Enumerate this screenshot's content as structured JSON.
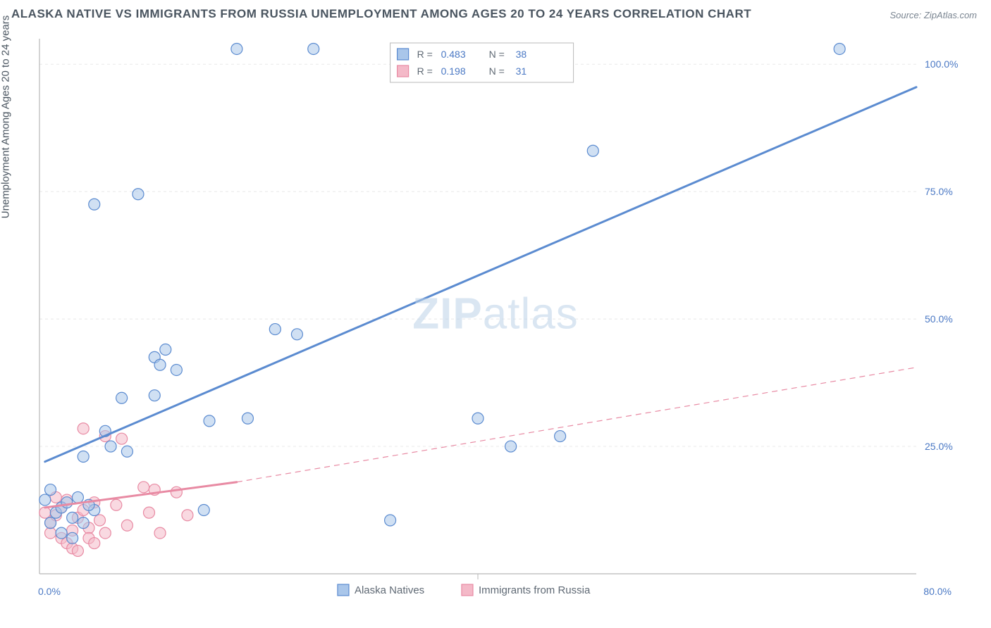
{
  "title": "ALASKA NATIVE VS IMMIGRANTS FROM RUSSIA UNEMPLOYMENT AMONG AGES 20 TO 24 YEARS CORRELATION CHART",
  "source_label": "Source: ZipAtlas.com",
  "ylabel": "Unemployment Among Ages 20 to 24 years",
  "watermark": {
    "bold_part": "ZIP",
    "rest_part": "atlas"
  },
  "chart": {
    "type": "scatter-with-regression",
    "background_color": "#ffffff",
    "xlim": [
      0,
      80
    ],
    "ylim": [
      0,
      105
    ],
    "x_ticks": [
      0,
      40,
      80
    ],
    "x_tick_labels": [
      "0.0%",
      "",
      "80.0%"
    ],
    "x_tick_color": "#4a78c4",
    "y_ticks": [
      25,
      50,
      75,
      100
    ],
    "y_tick_labels": [
      "25.0%",
      "50.0%",
      "75.0%",
      "100.0%"
    ],
    "y_tick_color": "#4a78c4",
    "grid_color": "#e8e8e8",
    "grid_dash": "4,4",
    "axis_color": "#b8b8b8",
    "tick_fontsize": 14,
    "label_fontsize": 15,
    "marker_radius": 8,
    "marker_stroke_width": 1.2,
    "line_width_solid": 3,
    "line_width_dashed": 1.2,
    "series": [
      {
        "name": "Alaska Natives",
        "color_fill": "#a9c6ea",
        "color_stroke": "#5b8bd0",
        "fill_opacity": 0.55,
        "points": [
          [
            1.0,
            16.5
          ],
          [
            1.5,
            12.0
          ],
          [
            2.0,
            13.0
          ],
          [
            2.5,
            14.0
          ],
          [
            3.0,
            11.0
          ],
          [
            3.5,
            15.0
          ],
          [
            4.0,
            10.0
          ],
          [
            4.0,
            23.0
          ],
          [
            5.0,
            72.5
          ],
          [
            6.0,
            28.0
          ],
          [
            5.0,
            12.5
          ],
          [
            6.5,
            25.0
          ],
          [
            7.5,
            34.5
          ],
          [
            8.0,
            24.0
          ],
          [
            9.0,
            74.5
          ],
          [
            10.5,
            42.5
          ],
          [
            10.5,
            35.0
          ],
          [
            11.0,
            41.0
          ],
          [
            11.5,
            44.0
          ],
          [
            12.5,
            40.0
          ],
          [
            15.0,
            12.5
          ],
          [
            15.5,
            30.0
          ],
          [
            18.0,
            103.0
          ],
          [
            19.0,
            30.5
          ],
          [
            21.5,
            48.0
          ],
          [
            23.5,
            47.0
          ],
          [
            25.0,
            103.0
          ],
          [
            32.0,
            10.5
          ],
          [
            40.0,
            30.5
          ],
          [
            43.0,
            25.0
          ],
          [
            47.5,
            27.0
          ],
          [
            50.5,
            83.0
          ],
          [
            73.0,
            103.0
          ],
          [
            2.0,
            8.0
          ],
          [
            3.0,
            7.0
          ],
          [
            4.5,
            13.5
          ],
          [
            1.0,
            10.0
          ],
          [
            0.5,
            14.5
          ]
        ],
        "trend": {
          "solid": {
            "x1": 0.5,
            "y1": 22.0,
            "x2": 80,
            "y2": 95.5
          }
        }
      },
      {
        "name": "Immigrants from Russia",
        "color_fill": "#f4b9c8",
        "color_stroke": "#e88aa3",
        "fill_opacity": 0.55,
        "points": [
          [
            0.5,
            12.0
          ],
          [
            1.0,
            10.0
          ],
          [
            1.0,
            8.0
          ],
          [
            1.5,
            15.0
          ],
          [
            1.5,
            11.5
          ],
          [
            2.0,
            7.0
          ],
          [
            2.0,
            13.0
          ],
          [
            2.5,
            6.0
          ],
          [
            2.5,
            14.5
          ],
          [
            3.0,
            8.5
          ],
          [
            3.0,
            5.0
          ],
          [
            3.5,
            11.0
          ],
          [
            3.5,
            4.5
          ],
          [
            4.0,
            12.5
          ],
          [
            4.0,
            28.5
          ],
          [
            4.5,
            9.0
          ],
          [
            4.5,
            7.0
          ],
          [
            5.0,
            14.0
          ],
          [
            5.0,
            6.0
          ],
          [
            5.5,
            10.5
          ],
          [
            6.0,
            8.0
          ],
          [
            6.0,
            27.0
          ],
          [
            7.0,
            13.5
          ],
          [
            7.5,
            26.5
          ],
          [
            8.0,
            9.5
          ],
          [
            9.5,
            17.0
          ],
          [
            10.5,
            16.5
          ],
          [
            11.0,
            8.0
          ],
          [
            12.5,
            16.0
          ],
          [
            13.5,
            11.5
          ],
          [
            10.0,
            12.0
          ]
        ],
        "trend": {
          "solid": {
            "x1": 0.5,
            "y1": 13.0,
            "x2": 18.0,
            "y2": 18.0
          },
          "dashed": {
            "x1": 18.0,
            "y1": 18.0,
            "x2": 80.0,
            "y2": 40.5
          }
        }
      }
    ],
    "legend_stats": {
      "box_stroke": "#b8b8b8",
      "box_fill": "#ffffff",
      "text_color": "#606a75",
      "value_color": "#4a78c4",
      "rows": [
        {
          "swatch_fill": "#a9c6ea",
          "swatch_stroke": "#5b8bd0",
          "r_label": "R =",
          "r_value": "0.483",
          "n_label": "N =",
          "n_value": "38"
        },
        {
          "swatch_fill": "#f4b9c8",
          "swatch_stroke": "#e88aa3",
          "r_label": "R =",
          "r_value": "0.198",
          "n_label": "N =",
          "n_value": "31"
        }
      ]
    },
    "legend_bottom": {
      "text_color": "#606a75",
      "items": [
        {
          "label": "Alaska Natives",
          "swatch_fill": "#a9c6ea",
          "swatch_stroke": "#5b8bd0"
        },
        {
          "label": "Immigrants from Russia",
          "swatch_fill": "#f4b9c8",
          "swatch_stroke": "#e88aa3"
        }
      ]
    }
  }
}
